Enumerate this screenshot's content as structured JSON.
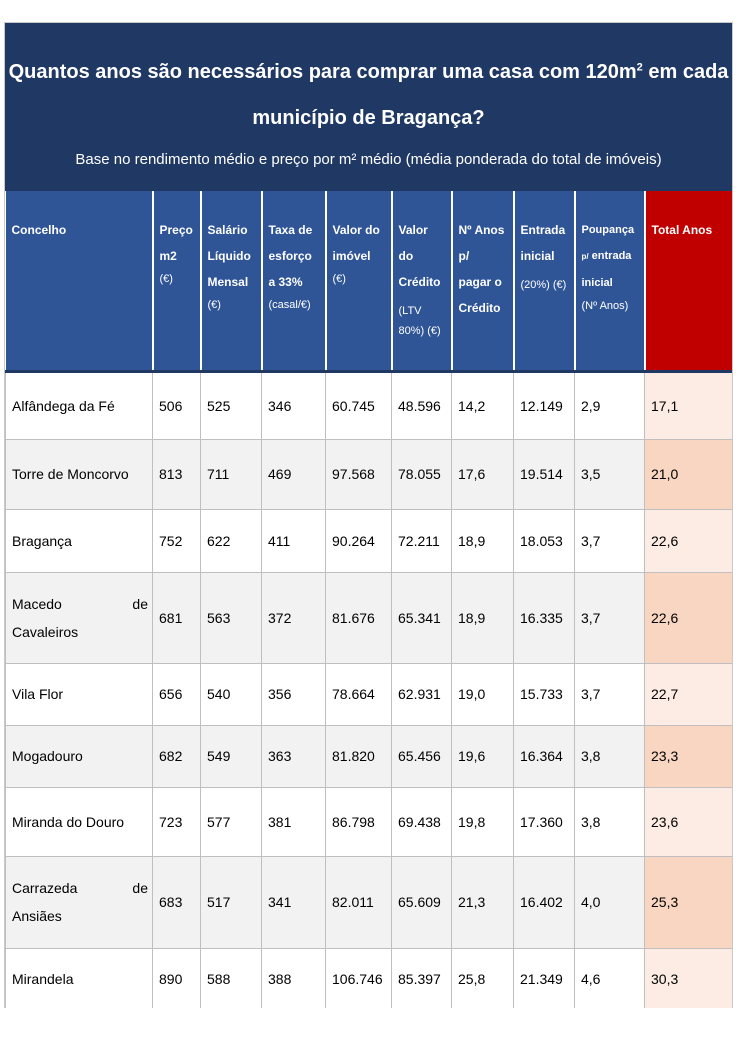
{
  "header": {
    "title_part1": "Quantos anos são necessários para comprar uma casa com 120m",
    "title_sup": "2",
    "title_part2": " em cada",
    "title_line2": "município de Bragança?",
    "subtitle": "Base no rendimento médio e preço por m² médio (média ponderada do total de imóveis)"
  },
  "columns": {
    "c1": "Concelho",
    "c2a": "Preço",
    "c2b": "m2",
    "c2c": "(€)",
    "c3a": "Salário",
    "c3b": "Líquido",
    "c3c": "Mensal",
    "c3d": "(€)",
    "c4a": "Taxa de",
    "c4b": "esforço",
    "c4c": "a 33%",
    "c4d": "(casal/€)",
    "c5a": "Valor do",
    "c5b": "imóvel",
    "c5c": "(€)",
    "c6a": "Valor",
    "c6b": "do",
    "c6c": "Crédito",
    "c6d": "(LTV",
    "c6e": "80%) (€)",
    "c7a": "Nº Anos",
    "c7b": "p/",
    "c7c": "pagar o",
    "c7d": "Crédito",
    "c8a": "Entrada",
    "c8b": "inicial",
    "c8c": "(20%) (€)",
    "c9a": "Poupança",
    "c9b": "p/",
    "c9c": "entrada",
    "c9d": "inicial",
    "c9e": "(Nº Anos)",
    "c10": "Total Anos"
  },
  "rows": [
    {
      "concelho": "Alfândega da Fé",
      "preco": "506",
      "salario": "525",
      "taxa": "346",
      "valor_imovel": "60.745",
      "valor_credito": "48.596",
      "anos_credito": "14,2",
      "entrada": "12.149",
      "poupanca": "2,9",
      "total": "17,1"
    },
    {
      "concelho": "Torre de Moncorvo",
      "preco": "813",
      "salario": "711",
      "taxa": "469",
      "valor_imovel": "97.568",
      "valor_credito": "78.055",
      "anos_credito": "17,6",
      "entrada": "19.514",
      "poupanca": "3,5",
      "total": "21,0"
    },
    {
      "concelho": "Bragança",
      "preco": "752",
      "salario": "622",
      "taxa": "411",
      "valor_imovel": "90.264",
      "valor_credito": "72.211",
      "anos_credito": "18,9",
      "entrada": "18.053",
      "poupanca": "3,7",
      "total": "22,6"
    },
    {
      "concelho": "Macedo de Cavaleiros",
      "preco": "681",
      "salario": "563",
      "taxa": "372",
      "valor_imovel": "81.676",
      "valor_credito": "65.341",
      "anos_credito": "18,9",
      "entrada": "16.335",
      "poupanca": "3,7",
      "total": "22,6"
    },
    {
      "concelho": "Vila Flor",
      "preco": "656",
      "salario": "540",
      "taxa": "356",
      "valor_imovel": "78.664",
      "valor_credito": "62.931",
      "anos_credito": "19,0",
      "entrada": "15.733",
      "poupanca": "3,7",
      "total": "22,7"
    },
    {
      "concelho": "Mogadouro",
      "preco": "682",
      "salario": "549",
      "taxa": "363",
      "valor_imovel": "81.820",
      "valor_credito": "65.456",
      "anos_credito": "19,6",
      "entrada": "16.364",
      "poupanca": "3,8",
      "total": "23,3"
    },
    {
      "concelho": "Miranda do Douro",
      "preco": "723",
      "salario": "577",
      "taxa": "381",
      "valor_imovel": "86.798",
      "valor_credito": "69.438",
      "anos_credito": "19,8",
      "entrada": "17.360",
      "poupanca": "3,8",
      "total": "23,6"
    },
    {
      "concelho": "Carrazeda de Ansiães",
      "preco": "683",
      "salario": "517",
      "taxa": "341",
      "valor_imovel": "82.011",
      "valor_credito": "65.609",
      "anos_credito": "21,3",
      "entrada": "16.402",
      "poupanca": "4,0",
      "total": "25,3"
    },
    {
      "concelho": "Mirandela",
      "preco": "890",
      "salario": "588",
      "taxa": "388",
      "valor_imovel": "106.746",
      "valor_credito": "85.397",
      "anos_credito": "25,8",
      "entrada": "21.349",
      "poupanca": "4,6",
      "total": "30,3"
    }
  ]
}
